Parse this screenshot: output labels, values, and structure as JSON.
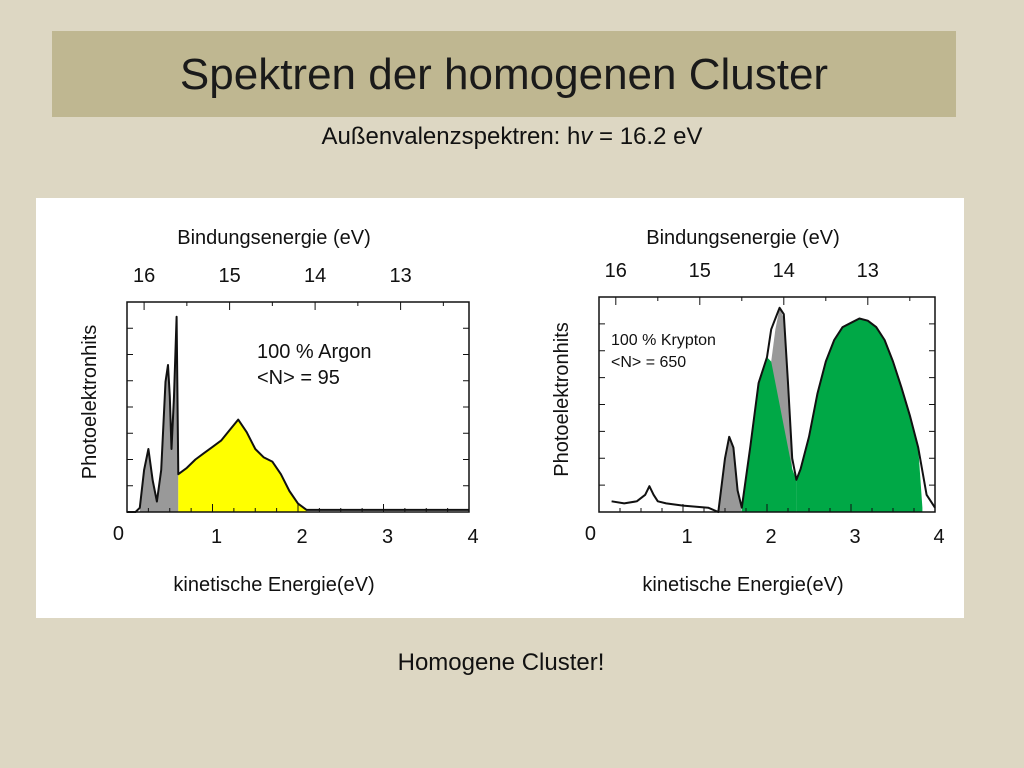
{
  "slide": {
    "title": "Spektren der homogenen Cluster",
    "subtitle_prefix": "Außenvalenzspektren: h",
    "subtitle_italic": "v",
    "subtitle_suffix": " = 16.2 eV",
    "conclusion": "Homogene Cluster!"
  },
  "colors": {
    "background": "#ddd7c3",
    "title_band": "#bfb791",
    "gray_fill": "#999999",
    "argon_fill": "#ffff00",
    "krypton_fill": "#00a846"
  },
  "chart_data": [
    {
      "type": "area",
      "top_axis_label": "Bindungsenergie (eV)",
      "top_ticks": [
        "16",
        "15",
        "14",
        "13"
      ],
      "top_tick_at_x": [
        0.2,
        1.2,
        2.2,
        3.2
      ],
      "xlabel": "kinetische Energie(eV)",
      "ylabel": "Photoelektronhits",
      "x_ticks": [
        "0",
        "1",
        "2",
        "3",
        "4"
      ],
      "xlim": [
        0,
        4
      ],
      "ylim": [
        0,
        1
      ],
      "annotation": [
        "100 % Argon",
        "<N> = 95"
      ],
      "series": [
        {
          "fill": "#999999",
          "x": [
            0.15,
            0.2,
            0.25,
            0.3,
            0.35,
            0.4,
            0.45,
            0.48,
            0.5,
            0.52,
            0.55,
            0.58,
            0.6
          ],
          "y": [
            0.02,
            0.2,
            0.3,
            0.15,
            0.05,
            0.2,
            0.62,
            0.7,
            0.55,
            0.3,
            0.55,
            0.93,
            0.18
          ]
        },
        {
          "fill": "#ffff00",
          "x": [
            0.6,
            0.7,
            0.8,
            0.9,
            1.0,
            1.1,
            1.2,
            1.3,
            1.4,
            1.5,
            1.6,
            1.7,
            1.8,
            1.9,
            2.0,
            2.1
          ],
          "y": [
            0.18,
            0.21,
            0.25,
            0.28,
            0.31,
            0.34,
            0.39,
            0.44,
            0.38,
            0.3,
            0.26,
            0.24,
            0.18,
            0.1,
            0.04,
            0.01
          ]
        }
      ],
      "outline": {
        "x": [
          0.0,
          0.1,
          0.15,
          0.2,
          0.25,
          0.3,
          0.35,
          0.4,
          0.45,
          0.48,
          0.5,
          0.52,
          0.55,
          0.58,
          0.6,
          0.7,
          0.8,
          0.9,
          1.0,
          1.1,
          1.2,
          1.3,
          1.4,
          1.5,
          1.6,
          1.7,
          1.8,
          1.9,
          2.0,
          2.1,
          2.5,
          3.0,
          3.5,
          4.0
        ],
        "y": [
          0.0,
          0.0,
          0.02,
          0.2,
          0.3,
          0.15,
          0.05,
          0.2,
          0.62,
          0.7,
          0.55,
          0.3,
          0.55,
          0.93,
          0.18,
          0.21,
          0.25,
          0.28,
          0.31,
          0.34,
          0.39,
          0.44,
          0.38,
          0.3,
          0.26,
          0.24,
          0.18,
          0.1,
          0.04,
          0.01,
          0.01,
          0.01,
          0.01,
          0.01
        ]
      }
    },
    {
      "type": "area",
      "top_axis_label": "Bindungsenergie (eV)",
      "top_ticks": [
        "16",
        "15",
        "14",
        "13"
      ],
      "top_tick_at_x": [
        0.2,
        1.2,
        2.2,
        3.2
      ],
      "xlabel": "kinetische Energie(eV)",
      "ylabel": "Photoelektronhits",
      "x_ticks": [
        "0",
        "1",
        "2",
        "3",
        "4"
      ],
      "xlim": [
        0,
        4
      ],
      "ylim": [
        0,
        1
      ],
      "annotation": [
        "100 % Krypton",
        "<N> = 650"
      ],
      "series": [
        {
          "fill": "#999999",
          "x": [
            1.42,
            1.5,
            1.55,
            1.6,
            1.65,
            1.7
          ],
          "y": [
            0.0,
            0.25,
            0.35,
            0.3,
            0.1,
            0.0
          ]
        },
        {
          "fill": "#999999",
          "x": [
            2.05,
            2.1,
            2.15,
            2.2,
            2.25,
            2.3
          ],
          "y": [
            0.7,
            0.85,
            0.95,
            0.9,
            0.6,
            0.2
          ]
        },
        {
          "fill": "#00a846",
          "x": [
            1.7,
            1.8,
            1.9,
            2.0,
            2.05,
            2.1,
            2.2,
            2.3,
            2.35
          ],
          "y": [
            0.02,
            0.3,
            0.6,
            0.72,
            0.7,
            0.6,
            0.4,
            0.2,
            0.15
          ]
        },
        {
          "fill": "#00a846",
          "x": [
            2.35,
            2.4,
            2.5,
            2.6,
            2.7,
            2.8,
            2.9,
            3.0,
            3.1,
            3.2,
            3.3,
            3.4,
            3.5,
            3.6,
            3.7,
            3.8,
            3.85
          ],
          "y": [
            0.15,
            0.2,
            0.35,
            0.55,
            0.7,
            0.8,
            0.86,
            0.88,
            0.9,
            0.89,
            0.86,
            0.8,
            0.7,
            0.58,
            0.45,
            0.3,
            0.02
          ]
        }
      ],
      "outline": {
        "x": [
          0.15,
          0.3,
          0.45,
          0.55,
          0.6,
          0.65,
          0.7,
          0.8,
          1.0,
          1.3,
          1.42,
          1.5,
          1.55,
          1.6,
          1.65,
          1.7,
          1.8,
          1.9,
          2.0,
          2.05,
          2.1,
          2.15,
          2.2,
          2.25,
          2.3,
          2.35,
          2.4,
          2.5,
          2.6,
          2.7,
          2.8,
          2.9,
          3.0,
          3.1,
          3.2,
          3.3,
          3.4,
          3.5,
          3.6,
          3.7,
          3.8,
          3.9,
          4.0
        ],
        "y": [
          0.05,
          0.04,
          0.05,
          0.08,
          0.12,
          0.08,
          0.05,
          0.04,
          0.03,
          0.02,
          0.0,
          0.25,
          0.35,
          0.3,
          0.1,
          0.02,
          0.3,
          0.6,
          0.72,
          0.85,
          0.9,
          0.95,
          0.92,
          0.6,
          0.25,
          0.15,
          0.2,
          0.35,
          0.55,
          0.7,
          0.8,
          0.86,
          0.88,
          0.9,
          0.89,
          0.86,
          0.8,
          0.7,
          0.58,
          0.45,
          0.3,
          0.08,
          0.02
        ]
      }
    }
  ]
}
